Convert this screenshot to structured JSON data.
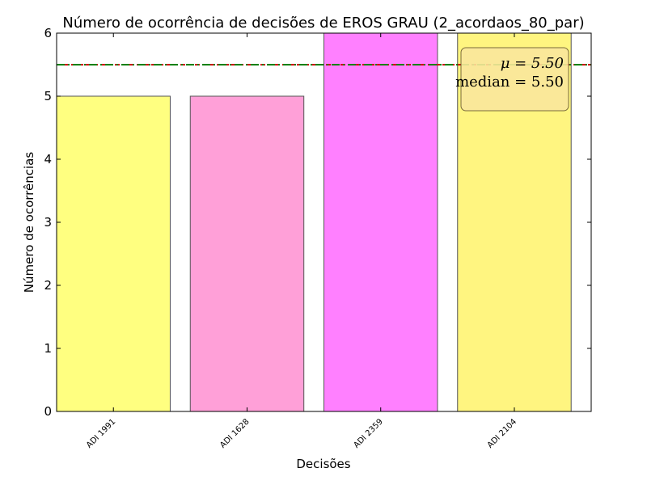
{
  "chart_data": {
    "type": "bar",
    "title": "Número de ocorrência de decisões de EROS GRAU (2_acordaos_80_par)",
    "xlabel": "Decisões",
    "ylabel": "Número de ocorrências",
    "categories": [
      "ADI 1991",
      "ADI 1628",
      "ADI 2359",
      "ADI 2104"
    ],
    "values": [
      5,
      5,
      6,
      6
    ],
    "colors": [
      "#ffff80",
      "#ffa0d8",
      "#ff80ff",
      "#fff580"
    ],
    "ylim": [
      0,
      6
    ],
    "yticks": [
      "0",
      "1",
      "2",
      "3",
      "4",
      "5",
      "6"
    ],
    "grid": false,
    "reference_lines": [
      {
        "value": 5.5,
        "style": "dashed",
        "color": "#cc0000"
      },
      {
        "value": 5.5,
        "style": "dash-dot",
        "color": "#008000"
      }
    ],
    "stats_box": {
      "placement": "top-right",
      "mean_text": "μ = 5.50",
      "median_text": "median = 5.50",
      "background": "#f9e79b"
    }
  }
}
